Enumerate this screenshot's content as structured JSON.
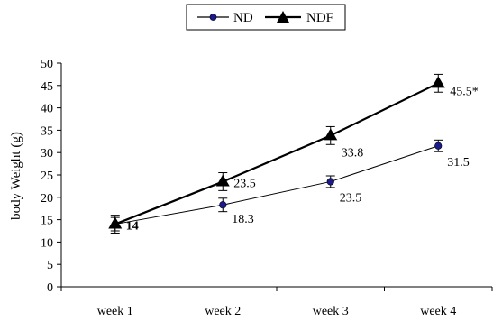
{
  "chart_data": {
    "type": "line",
    "categories": [
      "week 1",
      "week 2",
      "week 3",
      "week 4"
    ],
    "ylabel": "body Weight (g)",
    "xlabel": "",
    "ylim": [
      0,
      50
    ],
    "yticks": [
      0,
      5,
      10,
      15,
      20,
      25,
      30,
      35,
      40,
      45,
      50
    ],
    "grid": false,
    "legend_position": "top-center",
    "series": [
      {
        "name": "ND",
        "marker": "circle",
        "color": "#1a1a8c",
        "line_color": "#000000",
        "values": [
          14,
          18.3,
          23.5,
          31.5
        ],
        "errors": [
          1.5,
          1.5,
          1.3,
          1.3
        ],
        "labels": [
          "",
          "18.3",
          "23.5",
          "31.5"
        ]
      },
      {
        "name": "NDF",
        "marker": "triangle",
        "color": "#000000",
        "line_color": "#000000",
        "values": [
          14,
          23.5,
          33.8,
          45.5
        ],
        "errors": [
          2.0,
          2.0,
          2.0,
          2.0
        ],
        "labels": [
          "14",
          "23.5",
          "33.8",
          "45.5*"
        ]
      }
    ]
  }
}
